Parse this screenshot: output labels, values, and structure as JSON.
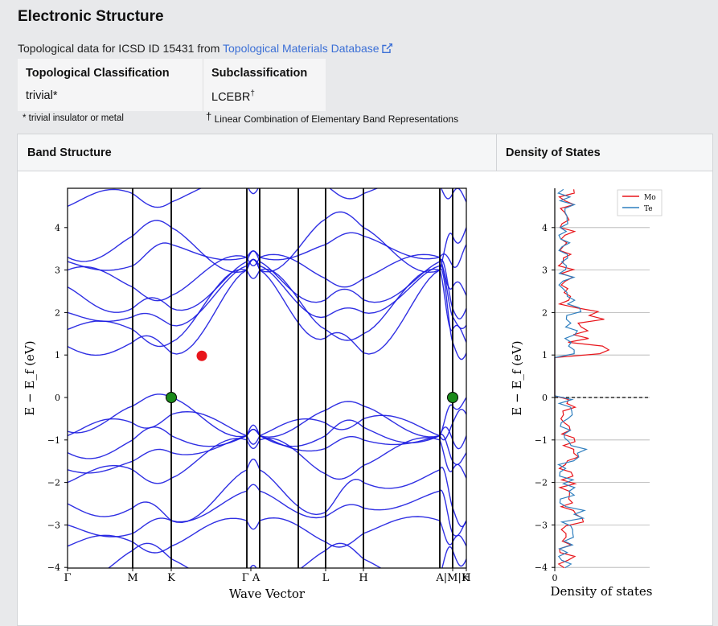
{
  "header": {
    "title": "Electronic Structure",
    "source_prefix": "Topological data for ICSD ID 15431 from ",
    "source_link": "Topological Materials Database"
  },
  "classification": {
    "col1_header": "Topological Classification",
    "col1_value": "trivial*",
    "col2_header": "Subclassification",
    "col2_value": "LCEBR",
    "col2_value_sup": "†",
    "footnote1": "* trivial insulator or metal",
    "footnote2_mark": "†",
    "footnote2": " Linear Combination of Elementary Band Representations"
  },
  "panel": {
    "band_header": "Band Structure",
    "dos_header": "Density of States"
  },
  "chart_data": [
    {
      "type": "line",
      "title": "",
      "xlabel": "Wave Vector",
      "ylabel": "E − E_f (eV)",
      "ylim": [
        -4,
        4.9
      ],
      "yticks": [
        "−4",
        "−3",
        "−2",
        "−1",
        "0",
        "1",
        "2",
        "3",
        "4"
      ],
      "kpoints": [
        "Γ",
        "M",
        "K",
        "Γ",
        "A",
        "L",
        "H",
        "A",
        "M",
        "K",
        "H"
      ],
      "kpoint_tick_labels": [
        "Γ",
        "M",
        "K",
        "Γ A",
        "L",
        "H",
        "A|M|K",
        "H"
      ],
      "band_color": "#1a1ae0",
      "cbm": {
        "kpoint": "K→Γ",
        "energy": 0.98,
        "color": "#e8151b"
      },
      "vbm": [
        {
          "kpoint": "K",
          "energy": 0.0,
          "color": "#1a8a1a"
        },
        {
          "kpoint": "K",
          "energy": 0.0,
          "color": "#1a8a1a"
        }
      ]
    },
    {
      "type": "line",
      "title": "",
      "xlabel": "Density of states",
      "ylabel": "E − E_f (eV)",
      "ylim": [
        -4,
        4.9
      ],
      "yticks": [
        "−4",
        "−3",
        "−2",
        "−1",
        "0",
        "1",
        "2",
        "3",
        "4"
      ],
      "xticks": [
        "0"
      ],
      "grid": true,
      "legend": "top-right",
      "series": [
        {
          "name": "Mo",
          "color": "#e8151b"
        },
        {
          "name": "Te",
          "color": "#2f7fbf"
        }
      ]
    }
  ]
}
